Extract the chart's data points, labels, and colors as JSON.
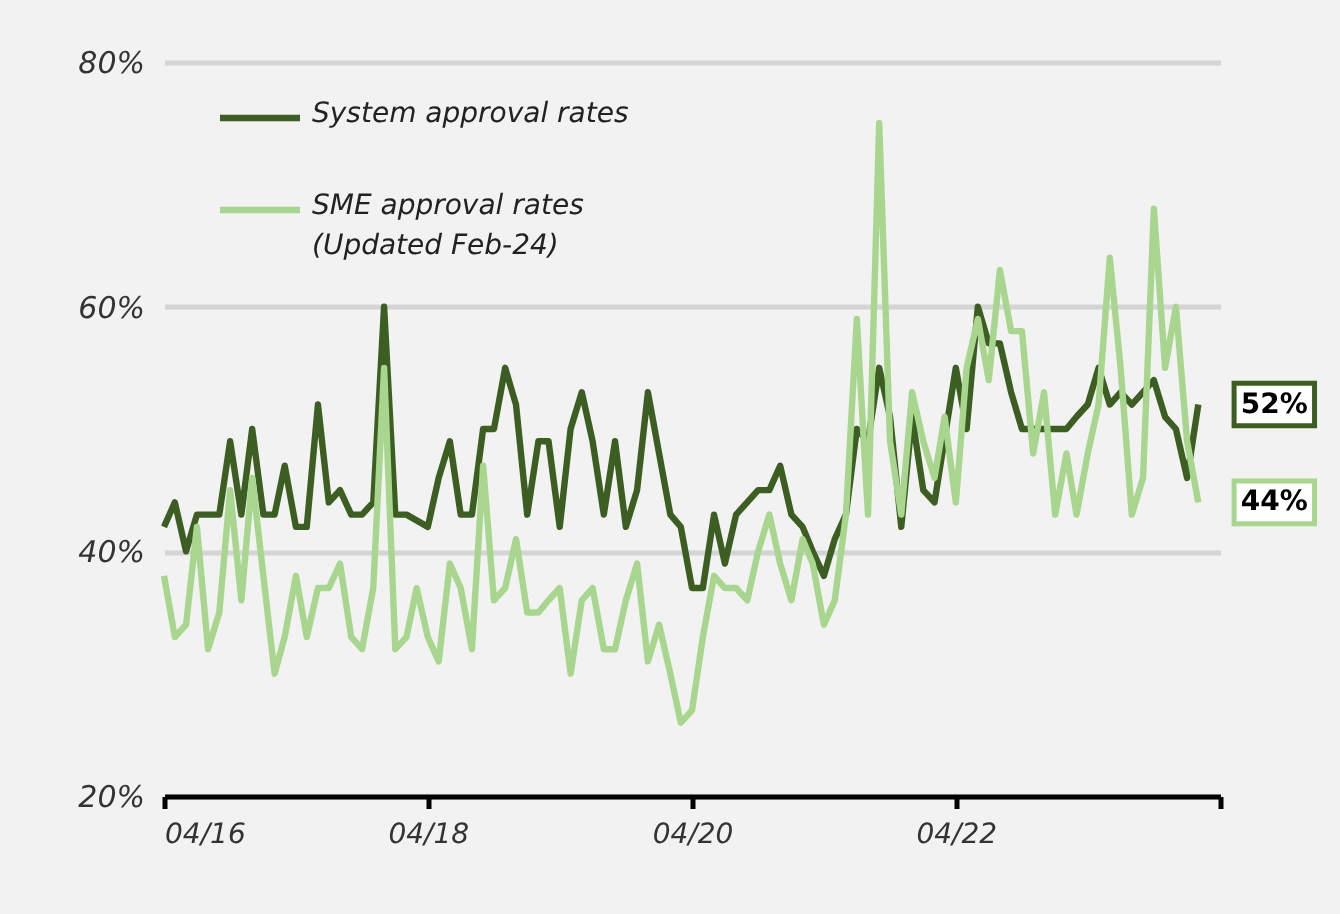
{
  "chart_data": {
    "type": "line",
    "xlim": [
      "2016-04",
      "2024-04"
    ],
    "xticks": [
      {
        "value": "2016-04",
        "label": "04/16"
      },
      {
        "value": "2018-04",
        "label": "04/18"
      },
      {
        "value": "2020-04",
        "label": "04/20"
      },
      {
        "value": "2022-04",
        "label": "04/22"
      },
      {
        "value": "2024-04",
        "label": null
      }
    ],
    "ylim": [
      20,
      80
    ],
    "yticks": [
      {
        "value": 20,
        "label": "20%"
      },
      {
        "value": 40,
        "label": "40%"
      },
      {
        "value": 60,
        "label": "60%"
      },
      {
        "value": 80,
        "label": "80%"
      }
    ],
    "grid": "y",
    "legend": "top left",
    "line_style": "solid",
    "marker": "none",
    "series": [
      {
        "name": "System approval rates",
        "color": "#3d5e22",
        "x": [
          "2016-04",
          "2016-05",
          "2016-06",
          "2016-07",
          "2016-08",
          "2016-09",
          "2016-10",
          "2016-11",
          "2016-12",
          "2017-01",
          "2017-02",
          "2017-03",
          "2017-04",
          "2017-05",
          "2017-06",
          "2017-07",
          "2017-08",
          "2017-09",
          "2017-10",
          "2017-11",
          "2017-12",
          "2018-01",
          "2018-02",
          "2018-04",
          "2018-05",
          "2018-06",
          "2018-07",
          "2018-08",
          "2018-09",
          "2018-10",
          "2018-11",
          "2018-12",
          "2019-01",
          "2019-02",
          "2019-03",
          "2019-04",
          "2019-05",
          "2019-06",
          "2019-07",
          "2019-08",
          "2019-09",
          "2019-10",
          "2019-11",
          "2019-12",
          "2020-02",
          "2020-03",
          "2020-04",
          "2020-05",
          "2020-06",
          "2020-07",
          "2020-08",
          "2020-10",
          "2020-11",
          "2020-12",
          "2021-01",
          "2021-02",
          "2021-03",
          "2021-04",
          "2021-05",
          "2021-06",
          "2021-07",
          "2021-08",
          "2021-09",
          "2021-10",
          "2021-11",
          "2021-12",
          "2022-01",
          "2022-02",
          "2022-04",
          "2022-05",
          "2022-06",
          "2022-07",
          "2022-08",
          "2022-09",
          "2022-10",
          "2023-01",
          "2023-02",
          "2023-03",
          "2023-04",
          "2023-05",
          "2023-06",
          "2023-07",
          "2023-08",
          "2023-10",
          "2023-11",
          "2023-12",
          "2024-01",
          "2024-02"
        ],
        "values": [
          42,
          44,
          40,
          43,
          43,
          43,
          49,
          43,
          50,
          43,
          43,
          47,
          42,
          42,
          52,
          44,
          45,
          43,
          43,
          44,
          60,
          43,
          43,
          42,
          46,
          49,
          43,
          43,
          50,
          50,
          55,
          52,
          43,
          49,
          49,
          42,
          50,
          53,
          49,
          43,
          49,
          42,
          45,
          53,
          43,
          42,
          37,
          37,
          43,
          39,
          43,
          45,
          45,
          47,
          43,
          42,
          40,
          38,
          41,
          43,
          50,
          49,
          55,
          51,
          42,
          51,
          45,
          44,
          55,
          50,
          60,
          57,
          57,
          53,
          50,
          50,
          50,
          51,
          52,
          55,
          52,
          53,
          52,
          54,
          51,
          50,
          46,
          52
        ]
      },
      {
        "name": "SME approval rates\n(Updated Feb-24)",
        "color": "#a9d68e",
        "x": [
          "2016-04",
          "2016-05",
          "2016-06",
          "2016-07",
          "2016-08",
          "2016-09",
          "2016-10",
          "2016-11",
          "2016-12",
          "2017-01",
          "2017-02",
          "2017-03",
          "2017-04",
          "2017-05",
          "2017-06",
          "2017-07",
          "2017-08",
          "2017-09",
          "2017-10",
          "2017-11",
          "2017-12",
          "2018-01",
          "2018-02",
          "2018-03",
          "2018-04",
          "2018-05",
          "2018-06",
          "2018-07",
          "2018-08",
          "2018-09",
          "2018-10",
          "2018-11",
          "2018-12",
          "2019-01",
          "2019-02",
          "2019-03",
          "2019-04",
          "2019-05",
          "2019-06",
          "2019-07",
          "2019-08",
          "2019-09",
          "2019-10",
          "2019-11",
          "2019-12",
          "2020-01",
          "2020-02",
          "2020-03",
          "2020-04",
          "2020-05",
          "2020-06",
          "2020-07",
          "2020-08",
          "2020-09",
          "2020-10",
          "2020-11",
          "2020-12",
          "2021-01",
          "2021-02",
          "2021-03",
          "2021-04",
          "2021-05",
          "2021-06",
          "2021-07",
          "2021-08",
          "2021-09",
          "2021-10",
          "2021-11",
          "2021-12",
          "2022-01",
          "2022-02",
          "2022-03",
          "2022-04",
          "2022-05",
          "2022-06",
          "2022-07",
          "2022-08",
          "2022-09",
          "2022-10",
          "2022-11",
          "2022-12",
          "2023-01",
          "2023-02",
          "2023-03",
          "2023-04",
          "2023-05",
          "2023-06",
          "2023-07",
          "2023-08",
          "2023-09",
          "2023-10",
          "2023-11",
          "2023-12",
          "2024-01",
          "2024-02"
        ],
        "values": [
          38,
          33,
          34,
          42,
          32,
          35,
          45,
          36,
          46,
          38,
          30,
          33,
          38,
          33,
          37,
          37,
          39,
          33,
          32,
          37,
          55,
          32,
          33,
          37,
          33,
          31,
          39,
          37,
          32,
          47,
          36,
          37,
          41,
          35,
          35,
          36,
          37,
          30,
          36,
          37,
          32,
          32,
          36,
          39,
          31,
          34,
          30,
          26,
          27,
          33,
          38,
          37,
          37,
          36,
          40,
          43,
          39,
          36,
          41,
          39,
          34,
          36,
          43,
          59,
          43,
          75,
          49,
          43,
          53,
          49,
          46,
          51,
          44,
          55,
          59,
          54,
          63,
          58,
          58,
          48,
          53,
          43,
          48,
          43,
          48,
          52,
          64,
          55,
          43,
          46,
          68,
          55,
          60,
          49,
          44
        ]
      }
    ],
    "annotations": [
      {
        "text": "52%",
        "x": "2024-02",
        "y": 52
      },
      {
        "text": "44%",
        "x": "2024-02",
        "y": 44
      }
    ]
  }
}
